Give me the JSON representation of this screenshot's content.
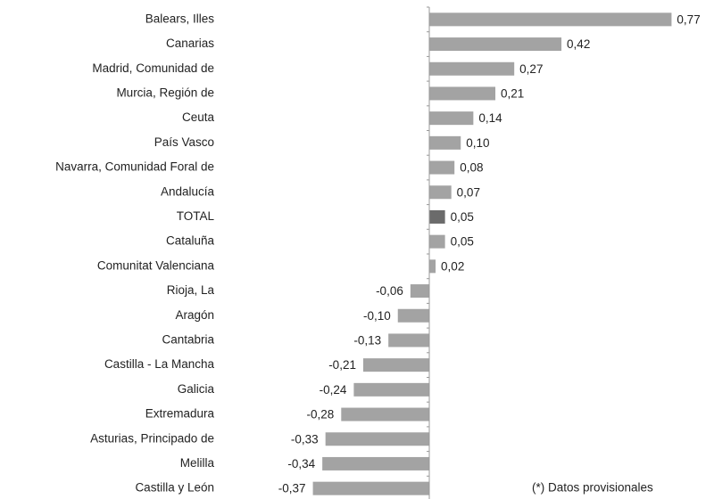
{
  "chart_data": {
    "type": "barh",
    "categories": [
      "Balears, Illes",
      "Canarias",
      "Madrid, Comunidad de",
      "Murcia, Región de",
      "Ceuta",
      "País Vasco",
      "Navarra, Comunidad Foral de",
      "Andalucía",
      "TOTAL",
      "Cataluña",
      "Comunitat Valenciana",
      "Rioja, La",
      "Aragón",
      "Cantabria",
      "Castilla - La Mancha",
      "Galicia",
      "Extremadura",
      "Asturias, Principado de",
      "Melilla",
      "Castilla y León"
    ],
    "values": [
      0.77,
      0.42,
      0.27,
      0.21,
      0.14,
      0.1,
      0.08,
      0.07,
      0.05,
      0.05,
      0.02,
      -0.06,
      -0.1,
      -0.13,
      -0.21,
      -0.24,
      -0.28,
      -0.33,
      -0.34,
      -0.37
    ],
    "value_labels": [
      "0,77",
      "0,42",
      "0,27",
      "0,21",
      "0,14",
      "0,10",
      "0,08",
      "0,07",
      "0,05",
      "0,05",
      "0,02",
      "-0,06",
      "-0,10",
      "-0,13",
      "-0,21",
      "-0,24",
      "-0,28",
      "-0,33",
      "-0,34",
      "-0,37"
    ],
    "colors": [
      "#a3a3a3",
      "#a3a3a3",
      "#a3a3a3",
      "#a3a3a3",
      "#a3a3a3",
      "#a3a3a3",
      "#a3a3a3",
      "#a3a3a3",
      "#6b6b6b",
      "#a3a3a3",
      "#a3a3a3",
      "#a3a3a3",
      "#a3a3a3",
      "#a3a3a3",
      "#a3a3a3",
      "#a3a3a3",
      "#a3a3a3",
      "#a3a3a3",
      "#a3a3a3",
      "#a3a3a3"
    ],
    "xlim": [
      -0.4,
      0.8
    ],
    "annotation": "(*) Datos provisionales"
  }
}
